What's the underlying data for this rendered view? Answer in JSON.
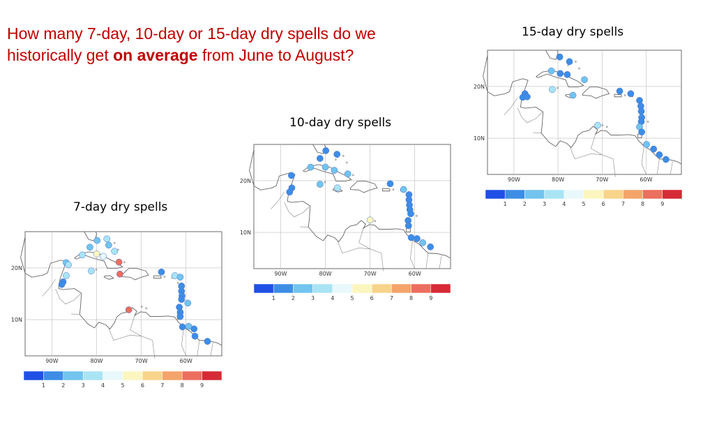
{
  "question": {
    "part1": "How many   7-day, 10-day or 15-day dry spells do we historically get ",
    "part2": "on average",
    "part3": " from June to August?"
  },
  "maps": [
    {
      "id": "7day",
      "title": "7-day dry spells",
      "lat_labels": [
        "20N",
        "10N"
      ],
      "lon_labels": [
        "90W",
        "80W",
        "70W",
        "60W"
      ],
      "colorbar_labels": [
        "1",
        "2",
        "3",
        "4",
        "5",
        "6",
        "7",
        "8",
        "9"
      ],
      "stations": [
        {
          "lon": -86.8,
          "lat": 21.0,
          "v": 2
        },
        {
          "lon": -86.3,
          "lat": 20.6,
          "v": 3
        },
        {
          "lon": -87.5,
          "lat": 17.3,
          "v": 1
        },
        {
          "lon": -87.8,
          "lat": 16.8,
          "v": 1
        },
        {
          "lon": -86.8,
          "lat": 18.5,
          "v": 3
        },
        {
          "lon": -83.2,
          "lat": 22.5,
          "v": 3
        },
        {
          "lon": -81.5,
          "lat": 24.0,
          "v": 2
        },
        {
          "lon": -79.9,
          "lat": 25.3,
          "v": 2
        },
        {
          "lon": -77.7,
          "lat": 25.6,
          "v": 3
        },
        {
          "lon": -77.3,
          "lat": 24.4,
          "v": 2
        },
        {
          "lon": -76.0,
          "lat": 23.2,
          "v": 3
        },
        {
          "lon": -80.0,
          "lat": 22.7,
          "v": 5
        },
        {
          "lon": -78.5,
          "lat": 22.2,
          "v": 4
        },
        {
          "lon": -75.0,
          "lat": 21.1,
          "v": 8
        },
        {
          "lon": -74.8,
          "lat": 18.8,
          "v": 8
        },
        {
          "lon": -81.2,
          "lat": 19.4,
          "v": 3
        },
        {
          "lon": -72.8,
          "lat": 11.9,
          "v": 8
        },
        {
          "lon": -65.5,
          "lat": 19.2,
          "v": 1
        },
        {
          "lon": -62.5,
          "lat": 18.5,
          "v": 3
        },
        {
          "lon": -61.3,
          "lat": 18.2,
          "v": 2
        },
        {
          "lon": -61.0,
          "lat": 16.5,
          "v": 1
        },
        {
          "lon": -61.0,
          "lat": 15.5,
          "v": 1
        },
        {
          "lon": -60.9,
          "lat": 14.6,
          "v": 1
        },
        {
          "lon": -61.0,
          "lat": 13.9,
          "v": 1
        },
        {
          "lon": -59.6,
          "lat": 13.2,
          "v": 2
        },
        {
          "lon": -61.5,
          "lat": 12.4,
          "v": 1
        },
        {
          "lon": -61.3,
          "lat": 11.4,
          "v": 1
        },
        {
          "lon": -61.3,
          "lat": 10.6,
          "v": 1
        },
        {
          "lon": -60.8,
          "lat": 8.6,
          "v": 1
        },
        {
          "lon": -59.4,
          "lat": 8.7,
          "v": 2
        },
        {
          "lon": -58.2,
          "lat": 8.2,
          "v": 1
        },
        {
          "lon": -58.0,
          "lat": 6.8,
          "v": 1
        },
        {
          "lon": -55.2,
          "lat": 5.8,
          "v": 1
        }
      ]
    },
    {
      "id": "10day",
      "title": "10-day dry spells",
      "lat_labels": [
        "20N",
        "10N"
      ],
      "lon_labels": [
        "90W",
        "80W",
        "70W",
        "60W"
      ],
      "colorbar_labels": [
        "1",
        "2",
        "3",
        "4",
        "5",
        "6",
        "7",
        "8",
        "9"
      ],
      "stations": [
        {
          "lon": -87.6,
          "lat": 21.0,
          "v": 1
        },
        {
          "lon": -87.5,
          "lat": 18.6,
          "v": 1
        },
        {
          "lon": -88.0,
          "lat": 17.8,
          "v": 1
        },
        {
          "lon": -83.3,
          "lat": 22.6,
          "v": 2
        },
        {
          "lon": -81.2,
          "lat": 24.3,
          "v": 1
        },
        {
          "lon": -79.9,
          "lat": 25.8,
          "v": 1
        },
        {
          "lon": -77.4,
          "lat": 25.1,
          "v": 1
        },
        {
          "lon": -80.0,
          "lat": 22.6,
          "v": 2
        },
        {
          "lon": -78.0,
          "lat": 22.0,
          "v": 2
        },
        {
          "lon": -75.0,
          "lat": 21.3,
          "v": 2
        },
        {
          "lon": -77.3,
          "lat": 18.6,
          "v": 3
        },
        {
          "lon": -81.2,
          "lat": 19.3,
          "v": 2
        },
        {
          "lon": -70.0,
          "lat": 12.4,
          "v": 5
        },
        {
          "lon": -65.5,
          "lat": 19.4,
          "v": 1
        },
        {
          "lon": -62.5,
          "lat": 18.3,
          "v": 2
        },
        {
          "lon": -61.3,
          "lat": 17.3,
          "v": 1
        },
        {
          "lon": -61.3,
          "lat": 16.3,
          "v": 1
        },
        {
          "lon": -61.2,
          "lat": 15.3,
          "v": 1
        },
        {
          "lon": -61.1,
          "lat": 14.4,
          "v": 1
        },
        {
          "lon": -60.9,
          "lat": 13.6,
          "v": 1
        },
        {
          "lon": -61.5,
          "lat": 12.3,
          "v": 1
        },
        {
          "lon": -61.4,
          "lat": 11.3,
          "v": 1
        },
        {
          "lon": -60.8,
          "lat": 9.0,
          "v": 1
        },
        {
          "lon": -59.5,
          "lat": 8.8,
          "v": 1
        },
        {
          "lon": -58.2,
          "lat": 8.0,
          "v": 2
        },
        {
          "lon": -56.5,
          "lat": 7.2,
          "v": 1
        }
      ]
    },
    {
      "id": "15day",
      "title": "15-day dry spells",
      "lat_labels": [
        "20N",
        "10N"
      ],
      "lon_labels": [
        "90W",
        "80W",
        "70W",
        "60W"
      ],
      "colorbar_labels": [
        "1",
        "2",
        "3",
        "4",
        "5",
        "6",
        "7",
        "8",
        "9"
      ],
      "stations": [
        {
          "lon": -87.5,
          "lat": 18.6,
          "v": 1
        },
        {
          "lon": -88.0,
          "lat": 17.9,
          "v": 1
        },
        {
          "lon": -87.0,
          "lat": 18.0,
          "v": 1
        },
        {
          "lon": -81.5,
          "lat": 23.0,
          "v": 2
        },
        {
          "lon": -79.6,
          "lat": 25.7,
          "v": 1
        },
        {
          "lon": -77.4,
          "lat": 24.8,
          "v": 1
        },
        {
          "lon": -79.5,
          "lat": 22.5,
          "v": 1
        },
        {
          "lon": -77.9,
          "lat": 22.3,
          "v": 1
        },
        {
          "lon": -74.0,
          "lat": 21.3,
          "v": 2
        },
        {
          "lon": -76.6,
          "lat": 18.3,
          "v": 2
        },
        {
          "lon": -81.3,
          "lat": 19.4,
          "v": 3
        },
        {
          "lon": -71.0,
          "lat": 12.5,
          "v": 3
        },
        {
          "lon": -66.0,
          "lat": 19.1,
          "v": 1
        },
        {
          "lon": -63.5,
          "lat": 18.6,
          "v": 1
        },
        {
          "lon": -61.5,
          "lat": 17.3,
          "v": 1
        },
        {
          "lon": -61.2,
          "lat": 16.2,
          "v": 1
        },
        {
          "lon": -61.1,
          "lat": 15.2,
          "v": 1
        },
        {
          "lon": -61.0,
          "lat": 14.0,
          "v": 1
        },
        {
          "lon": -61.1,
          "lat": 13.2,
          "v": 1
        },
        {
          "lon": -61.5,
          "lat": 12.2,
          "v": 2
        },
        {
          "lon": -61.0,
          "lat": 11.2,
          "v": 1
        },
        {
          "lon": -59.9,
          "lat": 8.8,
          "v": 2
        },
        {
          "lon": -58.3,
          "lat": 7.9,
          "v": 1
        },
        {
          "lon": -57.0,
          "lat": 6.8,
          "v": 1
        },
        {
          "lon": -55.5,
          "lat": 5.9,
          "v": 1
        }
      ]
    }
  ],
  "colors": {
    "scale": [
      "#1f4fe6",
      "#3d8de6",
      "#72c4ee",
      "#a9e4f5",
      "#e8f8fb",
      "#fbf6c0",
      "#f8d48a",
      "#f4a46a",
      "#ec6e5e",
      "#d62b36"
    ],
    "land_outline": "#666666",
    "grid": "#bbbbbb",
    "question_text": "#c00000"
  }
}
